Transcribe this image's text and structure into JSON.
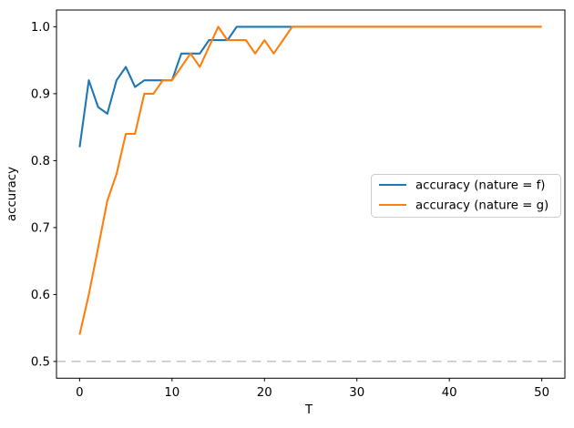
{
  "chart_data": {
    "type": "line",
    "title": "",
    "xlabel": "T",
    "ylabel": "accuracy",
    "grid": false,
    "legend_position": "center right",
    "xlim": [
      -2.5,
      52.5
    ],
    "ylim": [
      0.475,
      1.025
    ],
    "xticks": [
      0,
      10,
      20,
      30,
      40,
      50
    ],
    "yticks": [
      0.5,
      0.6,
      0.7,
      0.8,
      0.9,
      1.0
    ],
    "x": [
      0,
      1,
      2,
      3,
      4,
      5,
      6,
      7,
      8,
      9,
      10,
      11,
      12,
      13,
      14,
      15,
      16,
      17,
      18,
      19,
      20,
      21,
      22,
      23,
      24,
      25,
      26,
      27,
      28,
      29,
      30,
      31,
      32,
      33,
      34,
      35,
      36,
      37,
      38,
      39,
      40,
      41,
      42,
      43,
      44,
      45,
      46,
      47,
      48,
      49,
      50
    ],
    "series": [
      {
        "name": "accuracy (nature = f)",
        "color": "#1f77b4",
        "values": [
          0.82,
          0.92,
          0.88,
          0.87,
          0.92,
          0.94,
          0.91,
          0.92,
          0.92,
          0.92,
          0.92,
          0.96,
          0.96,
          0.96,
          0.98,
          0.98,
          0.98,
          1.0,
          1.0,
          1.0,
          1.0,
          1.0,
          1.0,
          1.0,
          1.0,
          1.0,
          1.0,
          1.0,
          1.0,
          1.0,
          1.0,
          1.0,
          1.0,
          1.0,
          1.0,
          1.0,
          1.0,
          1.0,
          1.0,
          1.0,
          1.0,
          1.0,
          1.0,
          1.0,
          1.0,
          1.0,
          1.0,
          1.0,
          1.0,
          1.0,
          1.0
        ]
      },
      {
        "name": "accuracy (nature = g)",
        "color": "#ff7f0e",
        "values": [
          0.54,
          0.6,
          0.67,
          0.74,
          0.78,
          0.84,
          0.84,
          0.9,
          0.9,
          0.92,
          0.92,
          0.94,
          0.96,
          0.94,
          0.97,
          1.0,
          0.98,
          0.98,
          0.98,
          0.96,
          0.98,
          0.96,
          0.98,
          1.0,
          1.0,
          1.0,
          1.0,
          1.0,
          1.0,
          1.0,
          1.0,
          1.0,
          1.0,
          1.0,
          1.0,
          1.0,
          1.0,
          1.0,
          1.0,
          1.0,
          1.0,
          1.0,
          1.0,
          1.0,
          1.0,
          1.0,
          1.0,
          1.0,
          1.0,
          1.0,
          1.0
        ]
      }
    ],
    "reference_line": {
      "y": 0.5,
      "style": "dashed",
      "color": "#c3c3c3"
    },
    "axis_color": "#000000"
  }
}
